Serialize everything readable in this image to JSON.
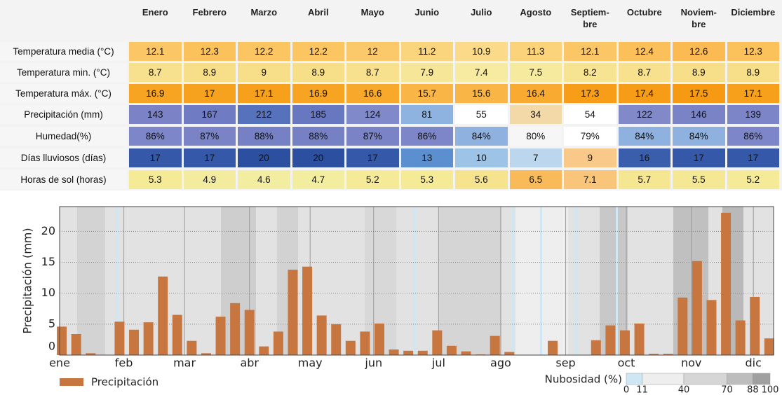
{
  "table": {
    "columns": [
      "Enero",
      "Febrero",
      "Marzo",
      "Abril",
      "Mayo",
      "Junio",
      "Julio",
      "Agosto",
      "Septiem-\nbre",
      "Octubre",
      "Noviem-\nbre",
      "Diciembre"
    ],
    "rows": [
      {
        "label": "Temperatura media (°C)",
        "cells": [
          12.1,
          12.3,
          12.2,
          12.2,
          12,
          11.2,
          10.9,
          11.3,
          12.1,
          12.4,
          12.6,
          12.3
        ],
        "colors": [
          "#fbc766",
          "#fbc25c",
          "#fbc561",
          "#fbc561",
          "#fbc96a",
          "#fbd57e",
          "#fbdb89",
          "#fbd37a",
          "#fbc766",
          "#fbc059",
          "#fbbb52",
          "#fbc25c"
        ]
      },
      {
        "label": "Temperatura min. (°C)",
        "cells": [
          8.7,
          8.9,
          9,
          8.9,
          8.7,
          7.9,
          7.4,
          7.5,
          8.2,
          8.7,
          8.9,
          8.9
        ],
        "colors": [
          "#f7e08e",
          "#f7df8a",
          "#f7de88",
          "#f7df8a",
          "#f7e08e",
          "#f6e697",
          "#f6eba0",
          "#f6ea9e",
          "#f7e492",
          "#f7e08e",
          "#f7df8a",
          "#f7df8a"
        ]
      },
      {
        "label": "Temperatura máx. (°C)",
        "cells": [
          16.9,
          17,
          17.1,
          16.9,
          16.6,
          15.7,
          15.6,
          16.4,
          17.3,
          17.4,
          17.5,
          17.1
        ],
        "colors": [
          "#f7a423",
          "#f7a21f",
          "#f7a01c",
          "#f7a423",
          "#f8a92c",
          "#f9b545",
          "#f9b647",
          "#f8ab30",
          "#f79d18",
          "#f79c16",
          "#f79a13",
          "#f7a01c"
        ]
      },
      {
        "label": "Precipitación (mm)",
        "cells": [
          143,
          167,
          212,
          185,
          124,
          81,
          55,
          34,
          54,
          122,
          146,
          139
        ],
        "colors": [
          "#7b83c6",
          "#6f7bc2",
          "#5672bd",
          "#6878c0",
          "#8089c9",
          "#8fb3e0",
          "#ffffff",
          "#f3d9a8",
          "#ffffff",
          "#8189c9",
          "#7a83c6",
          "#7c85c7"
        ]
      },
      {
        "label": "Humedad(%)",
        "cells": [
          "86%",
          "87%",
          "88%",
          "88%",
          "87%",
          "86%",
          "84%",
          "80%",
          "79%",
          "84%",
          "84%",
          "86%"
        ],
        "colors": [
          "#7d86c8",
          "#7a83c6",
          "#7680c4",
          "#7680c4",
          "#7a83c6",
          "#7d86c8",
          "#8fb1df",
          "#f6f6f6",
          "#ffffff",
          "#8fb1df",
          "#8fb1df",
          "#7d86c8"
        ]
      },
      {
        "label": "Días lluviosos (días)",
        "cells": [
          17,
          17,
          20,
          20,
          17,
          13,
          10,
          7,
          9,
          16,
          17,
          17
        ],
        "colors": [
          "#3559a8",
          "#3559a8",
          "#2d4fa0",
          "#2d4fa0",
          "#3559a8",
          "#5b8fcf",
          "#9dc3e6",
          "#bcd6ee",
          "#f9c98a",
          "#3a5eac",
          "#3559a8",
          "#3559a8"
        ]
      },
      {
        "label": "Horas de sol (horas)",
        "cells": [
          5.3,
          4.9,
          4.6,
          4.7,
          5.2,
          5.3,
          5.6,
          6.5,
          7.1,
          5.7,
          5.5,
          5.2
        ],
        "colors": [
          "#f5ea96",
          "#f3ec9e",
          "#f3eda2",
          "#f3eda0",
          "#f5ea98",
          "#f5ea96",
          "#f5e38e",
          "#f9ba5a",
          "#f8c57a",
          "#f5e692",
          "#f5e894",
          "#f5ea98"
        ]
      }
    ]
  },
  "chart_data": {
    "type": "bar",
    "ylabel": "Precipitación (mm)",
    "categories": [
      null,
      null,
      null,
      null,
      null,
      null,
      null,
      null,
      null,
      null,
      null,
      null,
      null,
      null,
      null,
      null,
      null,
      null,
      null,
      null,
      null,
      null,
      null,
      null,
      null,
      null,
      null,
      null,
      null,
      null,
      null,
      null,
      null,
      null,
      null,
      null,
      null,
      null,
      null,
      null,
      null,
      null,
      null,
      null,
      null,
      null,
      null,
      null,
      null,
      null
    ],
    "series": [
      {
        "name": "Precipitación",
        "color": "#c8763f",
        "values": [
          4.6,
          3.4,
          0.3,
          0,
          5.4,
          4.1,
          5.3,
          12.7,
          6.5,
          2.3,
          0.3,
          6.2,
          8.4,
          7.3,
          1.4,
          3.8,
          13.8,
          14.3,
          6.4,
          5.0,
          2.3,
          3.8,
          5.1,
          0.9,
          0.7,
          0.7,
          4.0,
          1.5,
          0.6,
          0.1,
          3.1,
          0.5,
          0,
          0,
          2.3,
          0,
          0,
          2.4,
          4.8,
          4.0,
          5.1,
          0.2,
          0.2,
          9.3,
          15.2,
          8.9,
          23.0,
          5.6,
          9.4,
          2.7
        ]
      }
    ],
    "xlim": [
      -0.15,
      49.3
    ],
    "xticks": [
      {
        "value": -0.15,
        "label": "ene"
      },
      {
        "value": 4.3,
        "label": "feb"
      },
      {
        "value": 8.5,
        "label": "mar"
      },
      {
        "value": 13.0,
        "label": "abr"
      },
      {
        "value": 17.2,
        "label": "may"
      },
      {
        "value": 21.6,
        "label": "jun"
      },
      {
        "value": 26.1,
        "label": "jul"
      },
      {
        "value": 30.4,
        "label": "ago"
      },
      {
        "value": 34.9,
        "label": "sep"
      },
      {
        "value": 39.1,
        "label": "oct"
      },
      {
        "value": 43.6,
        "label": "nov"
      },
      {
        "value": 47.9,
        "label": "dic"
      }
    ],
    "ylim": [
      0,
      24
    ],
    "yticks": [
      0,
      5,
      10,
      15,
      20
    ],
    "grid": true,
    "cloud_legend": {
      "label": "Nubosidad (%)",
      "ticks": [
        0,
        11,
        40,
        70,
        88,
        100
      ],
      "colors": [
        "#cfe7f5",
        "#eeeeee",
        "#d6d6d6",
        "#bdbdbd",
        "#a0a0a0"
      ]
    }
  }
}
